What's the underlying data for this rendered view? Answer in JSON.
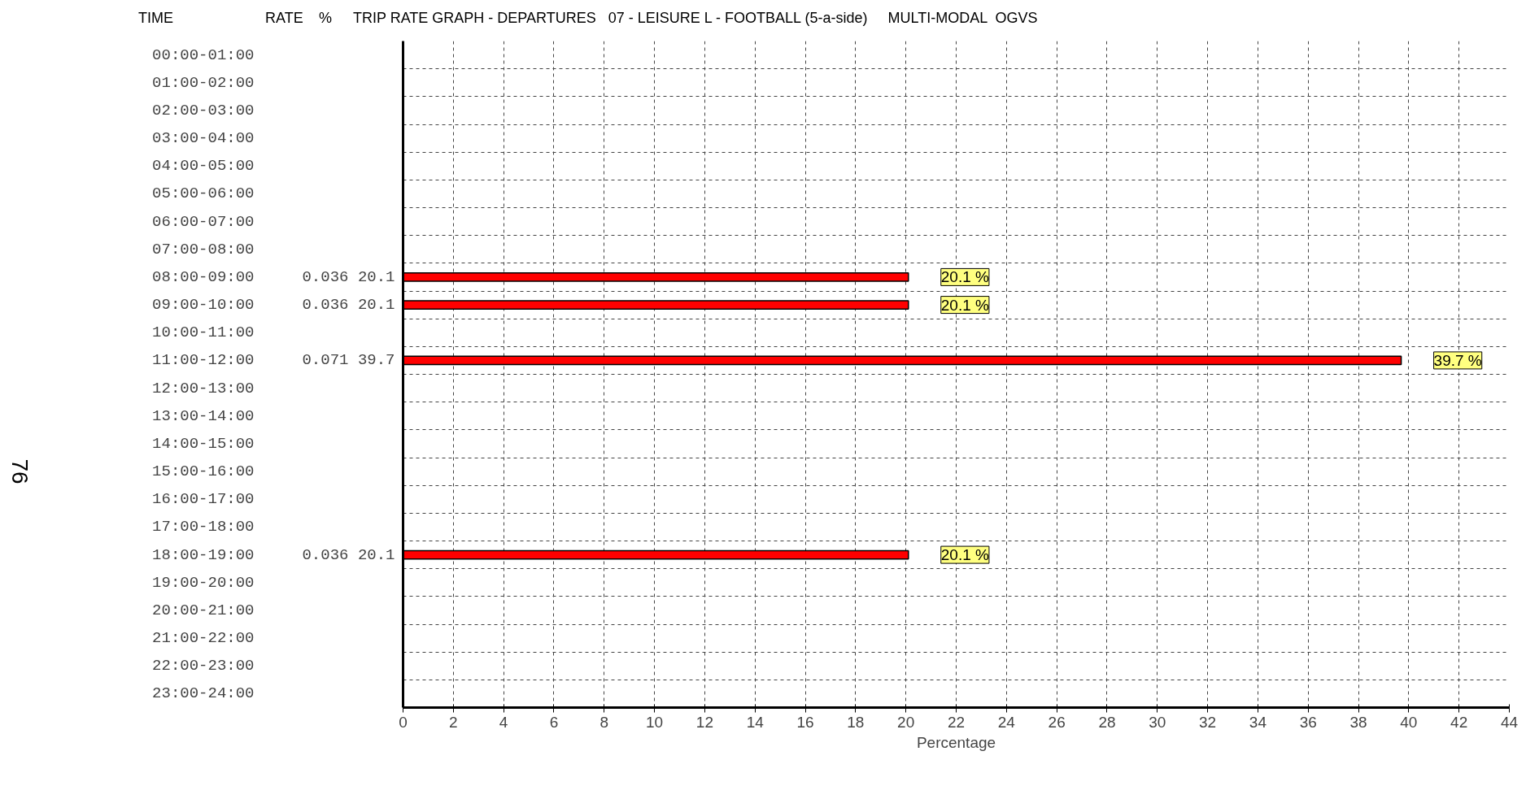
{
  "chart_data": {
    "type": "bar",
    "orientation": "horizontal",
    "title": "TRIP RATE GRAPH - DEPARTURES   07 - LEISURE L - FOOTBALL (5-a-side)     MULTI-MODAL  OGVS",
    "xlabel": "Percentage",
    "categories": [
      "00:00-01:00",
      "01:00-02:00",
      "02:00-03:00",
      "03:00-04:00",
      "04:00-05:00",
      "05:00-06:00",
      "06:00-07:00",
      "07:00-08:00",
      "08:00-09:00",
      "09:00-10:00",
      "10:00-11:00",
      "11:00-12:00",
      "12:00-13:00",
      "13:00-14:00",
      "14:00-15:00",
      "15:00-16:00",
      "16:00-17:00",
      "17:00-18:00",
      "18:00-19:00",
      "19:00-20:00",
      "20:00-21:00",
      "21:00-22:00",
      "22:00-23:00",
      "23:00-24:00"
    ],
    "values": [
      null,
      null,
      null,
      null,
      null,
      null,
      null,
      null,
      20.1,
      20.1,
      null,
      39.7,
      null,
      null,
      null,
      null,
      null,
      null,
      20.1,
      null,
      null,
      null,
      null,
      null
    ],
    "value_labels": [
      null,
      null,
      null,
      null,
      null,
      null,
      null,
      null,
      "20.1 %",
      "20.1 %",
      null,
      "39.7 %",
      null,
      null,
      null,
      null,
      null,
      null,
      "20.1 %",
      null,
      null,
      null,
      null,
      null
    ],
    "color": "#ff0000",
    "xlim": [
      0,
      44
    ],
    "xticks": [
      0,
      2,
      4,
      6,
      8,
      10,
      12,
      14,
      16,
      18,
      20,
      22,
      24,
      26,
      28,
      30,
      32,
      34,
      36,
      38,
      40,
      42,
      44
    ],
    "grid": true,
    "line_style": "dashed",
    "annotations": [
      "TIME",
      "RATE",
      "%",
      "76",
      "0.036 20.1",
      "0.036 20.1",
      "0.071 39.7",
      "0.036 20.1"
    ]
  }
}
